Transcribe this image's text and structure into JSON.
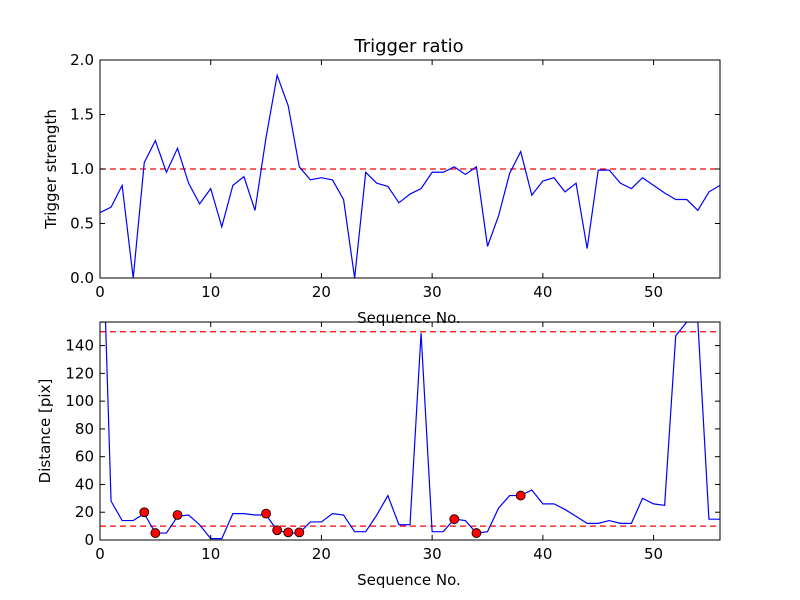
{
  "chart_data": [
    {
      "type": "line",
      "title": "Trigger ratio",
      "xlabel": "Sequence No.",
      "ylabel": "Trigger strength",
      "xlim": [
        0,
        56
      ],
      "ylim": [
        0,
        2.0
      ],
      "xticks": [
        0,
        10,
        20,
        30,
        40,
        50
      ],
      "yticks": [
        0.0,
        0.5,
        1.0,
        1.5,
        2.0
      ],
      "xtick_labels": [
        "0",
        "10",
        "20",
        "30",
        "40",
        "50"
      ],
      "ytick_labels": [
        "0.0",
        "0.5",
        "1.0",
        "1.5",
        "2.0"
      ],
      "grid": false,
      "threshold": 1.0,
      "line_color": "#0000ff",
      "threshold_color": "#ff0000",
      "x": [
        0,
        1,
        2,
        3,
        4,
        5,
        6,
        7,
        8,
        9,
        10,
        11,
        12,
        13,
        14,
        15,
        16,
        17,
        18,
        19,
        20,
        21,
        22,
        23,
        24,
        25,
        26,
        27,
        28,
        29,
        30,
        31,
        32,
        33,
        34,
        35,
        36,
        37,
        38,
        39,
        40,
        41,
        42,
        43,
        44,
        45,
        46,
        47,
        48,
        49,
        50,
        51,
        52,
        53,
        54,
        55,
        56
      ],
      "y": [
        0.6,
        0.65,
        0.85,
        0.0,
        1.06,
        1.26,
        0.97,
        1.19,
        0.87,
        0.68,
        0.82,
        0.47,
        0.85,
        0.93,
        0.62,
        1.29,
        1.86,
        1.58,
        1.02,
        0.9,
        0.92,
        0.9,
        0.72,
        0.0,
        0.97,
        0.87,
        0.84,
        0.69,
        0.77,
        0.82,
        0.97,
        0.97,
        1.02,
        0.95,
        1.02,
        0.29,
        0.57,
        0.96,
        1.16,
        0.76,
        0.89,
        0.92,
        0.79,
        0.87,
        0.27,
        0.99,
        0.99,
        0.87,
        0.82,
        0.92,
        0.85,
        0.78,
        0.72,
        0.72,
        0.62,
        0.79,
        0.85
      ]
    },
    {
      "type": "line",
      "xlabel": "Sequence No.",
      "ylabel": "Distance [pix]",
      "xlim": [
        0,
        56
      ],
      "ylim": [
        0,
        157
      ],
      "xticks": [
        0,
        10,
        20,
        30,
        40,
        50
      ],
      "yticks": [
        0,
        20,
        40,
        60,
        80,
        100,
        120,
        140
      ],
      "xtick_labels": [
        "0",
        "10",
        "20",
        "30",
        "40",
        "50"
      ],
      "ytick_labels": [
        "0",
        "20",
        "40",
        "60",
        "80",
        "100",
        "120",
        "140"
      ],
      "grid": false,
      "thresholds": [
        150,
        10
      ],
      "line_color": "#0000ff",
      "threshold_color": "#ff0000",
      "marker_color": "#ff0000",
      "x": [
        0,
        0.5,
        1,
        2,
        3,
        4,
        5,
        6,
        7,
        8,
        9,
        10,
        11,
        12,
        13,
        14,
        15,
        16,
        17,
        18,
        19,
        20,
        21,
        22,
        23,
        24,
        25,
        26,
        27,
        28,
        29,
        30,
        31,
        32,
        33,
        34,
        35,
        36,
        37,
        38,
        39,
        40,
        41,
        42,
        43,
        44,
        45,
        46,
        47,
        48,
        49,
        50,
        51,
        52,
        53,
        54,
        55,
        56
      ],
      "y": [
        157,
        157,
        28,
        14,
        14,
        19,
        5,
        5,
        17,
        18,
        11,
        1,
        1,
        19,
        19,
        18,
        18,
        7,
        5,
        5,
        13,
        13,
        19,
        18,
        6,
        6,
        18,
        32,
        11,
        11,
        149,
        6,
        6,
        15,
        14,
        5,
        6,
        23,
        32,
        32,
        36,
        26,
        26,
        22,
        17,
        12,
        12,
        14,
        12,
        12,
        30,
        26,
        25,
        147,
        157,
        157,
        15,
        15
      ],
      "markers": [
        {
          "x": 4,
          "y": 20
        },
        {
          "x": 5,
          "y": 5
        },
        {
          "x": 7,
          "y": 18
        },
        {
          "x": 15,
          "y": 19
        },
        {
          "x": 16,
          "y": 7
        },
        {
          "x": 17,
          "y": 5.5
        },
        {
          "x": 18,
          "y": 5.5
        },
        {
          "x": 32,
          "y": 15
        },
        {
          "x": 34,
          "y": 5
        },
        {
          "x": 38,
          "y": 32
        }
      ]
    }
  ]
}
